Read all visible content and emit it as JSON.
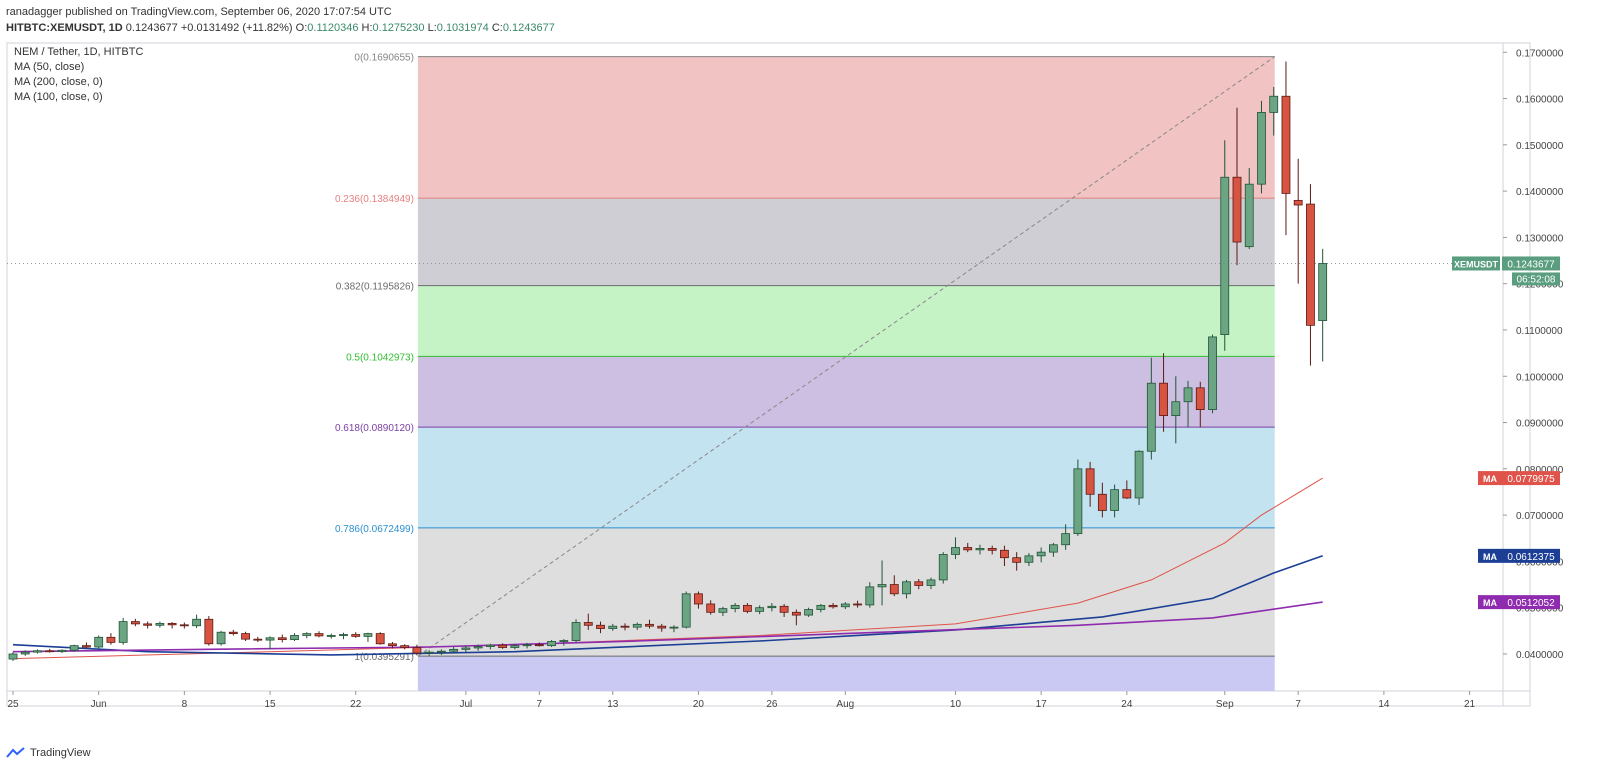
{
  "header": {
    "line1": "ranadagger published on TradingView.com, September 06, 2020 17:07:54 UTC",
    "symbol": "HITBTC:XEMUSDT, 1D",
    "last": "0.1243677",
    "change": "+0.0131492 (+11.82%)",
    "o_label": "O:",
    "o": "0.1120346",
    "h_label": "H:",
    "h": "0.1275230",
    "l_label": "L:",
    "l": "0.1031974",
    "c_label": "C:",
    "c": "0.1243677"
  },
  "legend": {
    "title": "NEM / Tether, 1D, HITBTC",
    "ma50": "MA (50, close)",
    "ma200": "MA (200, close, 0)",
    "ma100": "MA (100, close, 0)"
  },
  "footer": {
    "brand": "TradingView",
    "logo_icon": "tradingview-logo-icon"
  },
  "colors": {
    "up": "#6ba583",
    "down": "#d75442",
    "up_border": "#225437",
    "down_border": "#5b1a13",
    "ma50": "#e0534b",
    "ma100": "#8e2bae",
    "ma200": "#1c3f95",
    "fib_0_236": "#f0bcbc",
    "fib_236_382": "#c9c9cf",
    "fib_382_5": "#bff2c0",
    "fib_5_618": "#c8b8df",
    "fib_618_786": "#bde0f0",
    "fib_786_1": "#dadada",
    "fib_below": "#c3c3f2"
  },
  "chart_data": {
    "type": "candlestick",
    "title": "NEM / Tether, 1D, HITBTC",
    "x_tick_labels": [
      "25",
      "Jun",
      "8",
      "15",
      "22",
      "Jul",
      "7",
      "13",
      "20",
      "26",
      "Aug",
      "10",
      "17",
      "24",
      "Sep",
      "7",
      "14",
      "21"
    ],
    "x_tick_dates": [
      "2020-05-25",
      "2020-06-01",
      "2020-06-08",
      "2020-06-15",
      "2020-06-22",
      "2020-07-01",
      "2020-07-07",
      "2020-07-13",
      "2020-07-20",
      "2020-07-26",
      "2020-08-01",
      "2020-08-10",
      "2020-08-17",
      "2020-08-24",
      "2020-09-01",
      "2020-09-07",
      "2020-09-14",
      "2020-09-21"
    ],
    "x_range": [
      "2020-05-25",
      "2020-09-26"
    ],
    "y_range": [
      0.032,
      0.172
    ],
    "y_tick_labels": [
      "0.0400000",
      "0.0500000",
      "0.0600000",
      "0.0700000",
      "0.0800000",
      "0.0900000",
      "0.1000000",
      "0.1100000",
      "0.1200000",
      "0.1300000",
      "0.1400000",
      "0.1500000",
      "0.1600000",
      "0.1700000"
    ],
    "y_ticks": [
      0.04,
      0.05,
      0.06,
      0.07,
      0.08,
      0.09,
      0.1,
      0.11,
      0.12,
      0.13,
      0.14,
      0.15,
      0.16,
      0.17
    ],
    "last_price_label": "XEMUSDT",
    "last_price": "0.1243677",
    "last_price_value": 0.1243677,
    "countdown": "06:52:08",
    "candles": [
      {
        "date": "2020-05-25",
        "o": 0.0389,
        "h": 0.0404,
        "l": 0.0385,
        "c": 0.04
      },
      {
        "date": "2020-05-26",
        "o": 0.04,
        "h": 0.0408,
        "l": 0.0396,
        "c": 0.0404
      },
      {
        "date": "2020-05-27",
        "o": 0.0404,
        "h": 0.041,
        "l": 0.0401,
        "c": 0.0407
      },
      {
        "date": "2020-05-28",
        "o": 0.0407,
        "h": 0.0411,
        "l": 0.0403,
        "c": 0.0405
      },
      {
        "date": "2020-05-29",
        "o": 0.0405,
        "h": 0.041,
        "l": 0.0402,
        "c": 0.0408
      },
      {
        "date": "2020-05-30",
        "o": 0.0408,
        "h": 0.042,
        "l": 0.0405,
        "c": 0.0418
      },
      {
        "date": "2020-05-31",
        "o": 0.0418,
        "h": 0.0425,
        "l": 0.0412,
        "c": 0.0415
      },
      {
        "date": "2020-06-01",
        "o": 0.0415,
        "h": 0.044,
        "l": 0.0412,
        "c": 0.0436
      },
      {
        "date": "2020-06-02",
        "o": 0.0436,
        "h": 0.0445,
        "l": 0.042,
        "c": 0.0425
      },
      {
        "date": "2020-06-03",
        "o": 0.0425,
        "h": 0.0478,
        "l": 0.042,
        "c": 0.047
      },
      {
        "date": "2020-06-04",
        "o": 0.047,
        "h": 0.0476,
        "l": 0.046,
        "c": 0.0465
      },
      {
        "date": "2020-06-05",
        "o": 0.0465,
        "h": 0.047,
        "l": 0.0455,
        "c": 0.0462
      },
      {
        "date": "2020-06-06",
        "o": 0.0462,
        "h": 0.047,
        "l": 0.0457,
        "c": 0.0466
      },
      {
        "date": "2020-06-07",
        "o": 0.0466,
        "h": 0.0469,
        "l": 0.0455,
        "c": 0.0463
      },
      {
        "date": "2020-06-08",
        "o": 0.0463,
        "h": 0.0468,
        "l": 0.0455,
        "c": 0.0461
      },
      {
        "date": "2020-06-09",
        "o": 0.0461,
        "h": 0.0485,
        "l": 0.0456,
        "c": 0.0475
      },
      {
        "date": "2020-06-10",
        "o": 0.0475,
        "h": 0.0482,
        "l": 0.0418,
        "c": 0.0422
      },
      {
        "date": "2020-06-11",
        "o": 0.0422,
        "h": 0.045,
        "l": 0.0418,
        "c": 0.0447
      },
      {
        "date": "2020-06-12",
        "o": 0.0447,
        "h": 0.0452,
        "l": 0.044,
        "c": 0.0444
      },
      {
        "date": "2020-06-13",
        "o": 0.0444,
        "h": 0.0448,
        "l": 0.0428,
        "c": 0.0432
      },
      {
        "date": "2020-06-14",
        "o": 0.0432,
        "h": 0.0437,
        "l": 0.0426,
        "c": 0.043
      },
      {
        "date": "2020-06-15",
        "o": 0.043,
        "h": 0.0438,
        "l": 0.041,
        "c": 0.0435
      },
      {
        "date": "2020-06-16",
        "o": 0.0435,
        "h": 0.0442,
        "l": 0.0425,
        "c": 0.0431
      },
      {
        "date": "2020-06-17",
        "o": 0.0431,
        "h": 0.0445,
        "l": 0.0428,
        "c": 0.044
      },
      {
        "date": "2020-06-18",
        "o": 0.044,
        "h": 0.0447,
        "l": 0.0434,
        "c": 0.0444
      },
      {
        "date": "2020-06-19",
        "o": 0.0444,
        "h": 0.0449,
        "l": 0.0436,
        "c": 0.0439
      },
      {
        "date": "2020-06-20",
        "o": 0.0439,
        "h": 0.0444,
        "l": 0.0433,
        "c": 0.044
      },
      {
        "date": "2020-06-21",
        "o": 0.044,
        "h": 0.0446,
        "l": 0.0432,
        "c": 0.0442
      },
      {
        "date": "2020-06-22",
        "o": 0.0442,
        "h": 0.0447,
        "l": 0.0435,
        "c": 0.0438
      },
      {
        "date": "2020-06-23",
        "o": 0.0438,
        "h": 0.0446,
        "l": 0.0426,
        "c": 0.0444
      },
      {
        "date": "2020-06-24",
        "o": 0.0444,
        "h": 0.0447,
        "l": 0.042,
        "c": 0.0422
      },
      {
        "date": "2020-06-25",
        "o": 0.0422,
        "h": 0.0426,
        "l": 0.0412,
        "c": 0.0418
      },
      {
        "date": "2020-06-26",
        "o": 0.0418,
        "h": 0.0421,
        "l": 0.041,
        "c": 0.0414
      },
      {
        "date": "2020-06-27",
        "o": 0.0414,
        "h": 0.042,
        "l": 0.0397,
        "c": 0.0402
      },
      {
        "date": "2020-06-28",
        "o": 0.0402,
        "h": 0.0408,
        "l": 0.0396,
        "c": 0.0404
      },
      {
        "date": "2020-06-29",
        "o": 0.0404,
        "h": 0.041,
        "l": 0.0398,
        "c": 0.0406
      },
      {
        "date": "2020-06-30",
        "o": 0.0406,
        "h": 0.0415,
        "l": 0.0402,
        "c": 0.041
      },
      {
        "date": "2020-07-01",
        "o": 0.041,
        "h": 0.0418,
        "l": 0.0404,
        "c": 0.0413
      },
      {
        "date": "2020-07-02",
        "o": 0.0413,
        "h": 0.042,
        "l": 0.0407,
        "c": 0.0416
      },
      {
        "date": "2020-07-03",
        "o": 0.0416,
        "h": 0.0422,
        "l": 0.041,
        "c": 0.0419
      },
      {
        "date": "2020-07-04",
        "o": 0.0419,
        "h": 0.0423,
        "l": 0.0411,
        "c": 0.0414
      },
      {
        "date": "2020-07-05",
        "o": 0.0414,
        "h": 0.0422,
        "l": 0.041,
        "c": 0.0418
      },
      {
        "date": "2020-07-06",
        "o": 0.0418,
        "h": 0.0424,
        "l": 0.0412,
        "c": 0.042
      },
      {
        "date": "2020-07-07",
        "o": 0.042,
        "h": 0.0425,
        "l": 0.0416,
        "c": 0.0418
      },
      {
        "date": "2020-07-08",
        "o": 0.0418,
        "h": 0.043,
        "l": 0.0415,
        "c": 0.0427
      },
      {
        "date": "2020-07-09",
        "o": 0.0427,
        "h": 0.0432,
        "l": 0.0418,
        "c": 0.0429
      },
      {
        "date": "2020-07-10",
        "o": 0.0429,
        "h": 0.0475,
        "l": 0.0425,
        "c": 0.0468
      },
      {
        "date": "2020-07-11",
        "o": 0.0468,
        "h": 0.0487,
        "l": 0.0452,
        "c": 0.0462
      },
      {
        "date": "2020-07-12",
        "o": 0.0462,
        "h": 0.047,
        "l": 0.0445,
        "c": 0.0455
      },
      {
        "date": "2020-07-13",
        "o": 0.0455,
        "h": 0.0465,
        "l": 0.045,
        "c": 0.046
      },
      {
        "date": "2020-07-14",
        "o": 0.046,
        "h": 0.0466,
        "l": 0.0451,
        "c": 0.0458
      },
      {
        "date": "2020-07-15",
        "o": 0.0458,
        "h": 0.0468,
        "l": 0.0452,
        "c": 0.0464
      },
      {
        "date": "2020-07-16",
        "o": 0.0464,
        "h": 0.0474,
        "l": 0.0455,
        "c": 0.046
      },
      {
        "date": "2020-07-17",
        "o": 0.046,
        "h": 0.0465,
        "l": 0.0448,
        "c": 0.0456
      },
      {
        "date": "2020-07-18",
        "o": 0.0456,
        "h": 0.0462,
        "l": 0.0447,
        "c": 0.0458
      },
      {
        "date": "2020-07-19",
        "o": 0.0458,
        "h": 0.0535,
        "l": 0.0455,
        "c": 0.053
      },
      {
        "date": "2020-07-20",
        "o": 0.053,
        "h": 0.0535,
        "l": 0.0498,
        "c": 0.0508
      },
      {
        "date": "2020-07-21",
        "o": 0.0508,
        "h": 0.0516,
        "l": 0.0485,
        "c": 0.049
      },
      {
        "date": "2020-07-22",
        "o": 0.049,
        "h": 0.0502,
        "l": 0.0482,
        "c": 0.0498
      },
      {
        "date": "2020-07-23",
        "o": 0.0498,
        "h": 0.051,
        "l": 0.049,
        "c": 0.0505
      },
      {
        "date": "2020-07-24",
        "o": 0.0505,
        "h": 0.051,
        "l": 0.0488,
        "c": 0.0492
      },
      {
        "date": "2020-07-25",
        "o": 0.0492,
        "h": 0.0505,
        "l": 0.0486,
        "c": 0.05
      },
      {
        "date": "2020-07-26",
        "o": 0.05,
        "h": 0.051,
        "l": 0.0492,
        "c": 0.0503
      },
      {
        "date": "2020-07-27",
        "o": 0.0503,
        "h": 0.0508,
        "l": 0.048,
        "c": 0.049
      },
      {
        "date": "2020-07-28",
        "o": 0.049,
        "h": 0.0496,
        "l": 0.0462,
        "c": 0.0484
      },
      {
        "date": "2020-07-29",
        "o": 0.0484,
        "h": 0.05,
        "l": 0.048,
        "c": 0.0496
      },
      {
        "date": "2020-07-30",
        "o": 0.0496,
        "h": 0.0508,
        "l": 0.049,
        "c": 0.0505
      },
      {
        "date": "2020-07-31",
        "o": 0.0505,
        "h": 0.051,
        "l": 0.0498,
        "c": 0.0502
      },
      {
        "date": "2020-08-01",
        "o": 0.0502,
        "h": 0.0512,
        "l": 0.0497,
        "c": 0.0508
      },
      {
        "date": "2020-08-02",
        "o": 0.0508,
        "h": 0.0515,
        "l": 0.05,
        "c": 0.0506
      },
      {
        "date": "2020-08-03",
        "o": 0.0506,
        "h": 0.0555,
        "l": 0.05,
        "c": 0.0545
      },
      {
        "date": "2020-08-04",
        "o": 0.0545,
        "h": 0.0602,
        "l": 0.0505,
        "c": 0.055
      },
      {
        "date": "2020-08-05",
        "o": 0.055,
        "h": 0.057,
        "l": 0.0525,
        "c": 0.053
      },
      {
        "date": "2020-08-06",
        "o": 0.053,
        "h": 0.056,
        "l": 0.052,
        "c": 0.0556
      },
      {
        "date": "2020-08-07",
        "o": 0.0556,
        "h": 0.0562,
        "l": 0.054,
        "c": 0.0548
      },
      {
        "date": "2020-08-08",
        "o": 0.0548,
        "h": 0.0565,
        "l": 0.054,
        "c": 0.056
      },
      {
        "date": "2020-08-09",
        "o": 0.056,
        "h": 0.062,
        "l": 0.0552,
        "c": 0.0615
      },
      {
        "date": "2020-08-10",
        "o": 0.0615,
        "h": 0.0652,
        "l": 0.0605,
        "c": 0.063
      },
      {
        "date": "2020-08-11",
        "o": 0.063,
        "h": 0.064,
        "l": 0.062,
        "c": 0.0625
      },
      {
        "date": "2020-08-12",
        "o": 0.0625,
        "h": 0.0636,
        "l": 0.0615,
        "c": 0.0628
      },
      {
        "date": "2020-08-13",
        "o": 0.0628,
        "h": 0.0634,
        "l": 0.0615,
        "c": 0.0624
      },
      {
        "date": "2020-08-14",
        "o": 0.0624,
        "h": 0.0634,
        "l": 0.059,
        "c": 0.0608
      },
      {
        "date": "2020-08-15",
        "o": 0.0608,
        "h": 0.062,
        "l": 0.058,
        "c": 0.0598
      },
      {
        "date": "2020-08-16",
        "o": 0.0598,
        "h": 0.0618,
        "l": 0.059,
        "c": 0.0612
      },
      {
        "date": "2020-08-17",
        "o": 0.0612,
        "h": 0.063,
        "l": 0.0598,
        "c": 0.062
      },
      {
        "date": "2020-08-18",
        "o": 0.062,
        "h": 0.064,
        "l": 0.061,
        "c": 0.0636
      },
      {
        "date": "2020-08-19",
        "o": 0.0636,
        "h": 0.068,
        "l": 0.0625,
        "c": 0.066
      },
      {
        "date": "2020-08-20",
        "o": 0.066,
        "h": 0.082,
        "l": 0.0655,
        "c": 0.08
      },
      {
        "date": "2020-08-21",
        "o": 0.08,
        "h": 0.0815,
        "l": 0.0718,
        "c": 0.0745
      },
      {
        "date": "2020-08-22",
        "o": 0.0745,
        "h": 0.077,
        "l": 0.0695,
        "c": 0.071
      },
      {
        "date": "2020-08-23",
        "o": 0.071,
        "h": 0.0766,
        "l": 0.0695,
        "c": 0.0755
      },
      {
        "date": "2020-08-24",
        "o": 0.0755,
        "h": 0.0775,
        "l": 0.0735,
        "c": 0.0737
      },
      {
        "date": "2020-08-25",
        "o": 0.0737,
        "h": 0.084,
        "l": 0.0722,
        "c": 0.0838
      },
      {
        "date": "2020-08-26",
        "o": 0.0838,
        "h": 0.104,
        "l": 0.082,
        "c": 0.0985
      },
      {
        "date": "2020-08-27",
        "o": 0.0985,
        "h": 0.105,
        "l": 0.088,
        "c": 0.0915
      },
      {
        "date": "2020-08-28",
        "o": 0.0915,
        "h": 0.1,
        "l": 0.0855,
        "c": 0.0945
      },
      {
        "date": "2020-08-29",
        "o": 0.0945,
        "h": 0.099,
        "l": 0.089,
        "c": 0.0975
      },
      {
        "date": "2020-08-30",
        "o": 0.0975,
        "h": 0.0988,
        "l": 0.089,
        "c": 0.0928
      },
      {
        "date": "2020-08-31",
        "o": 0.0928,
        "h": 0.109,
        "l": 0.092,
        "c": 0.1085
      },
      {
        "date": "2020-09-01",
        "o": 0.109,
        "h": 0.151,
        "l": 0.1055,
        "c": 0.143
      },
      {
        "date": "2020-09-02",
        "o": 0.143,
        "h": 0.158,
        "l": 0.124,
        "c": 0.129
      },
      {
        "date": "2020-09-03",
        "o": 0.128,
        "h": 0.145,
        "l": 0.1275,
        "c": 0.1415
      },
      {
        "date": "2020-09-04",
        "o": 0.1415,
        "h": 0.1595,
        "l": 0.1395,
        "c": 0.157
      },
      {
        "date": "2020-09-05",
        "o": 0.157,
        "h": 0.1625,
        "l": 0.152,
        "c": 0.1605
      },
      {
        "date": "2020-09-06",
        "o": 0.1605,
        "h": 0.168,
        "l": 0.1305,
        "c": 0.1395
      },
      {
        "date": "2020-09-07",
        "o": 0.138,
        "h": 0.147,
        "l": 0.12,
        "c": 0.137
      },
      {
        "date": "2020-09-08",
        "o": 0.1372,
        "h": 0.1415,
        "l": 0.1023,
        "c": 0.111
      },
      {
        "date": "2020-09-09",
        "o": 0.1120346,
        "h": 0.127523,
        "l": 0.1031974,
        "c": 0.1243677
      }
    ],
    "moving_averages": [
      {
        "name": "MA (50, close)",
        "badge": "MA",
        "value_label": "0.0779975",
        "color": "#e0534b",
        "points": [
          [
            "2020-05-25",
            0.039
          ],
          [
            "2020-06-15",
            0.0405
          ],
          [
            "2020-07-05",
            0.042
          ],
          [
            "2020-07-25",
            0.044
          ],
          [
            "2020-08-10",
            0.0465
          ],
          [
            "2020-08-20",
            0.051
          ],
          [
            "2020-08-26",
            0.056
          ],
          [
            "2020-09-01",
            0.064
          ],
          [
            "2020-09-04",
            0.07
          ],
          [
            "2020-09-09",
            0.078
          ]
        ]
      },
      {
        "name": "MA (200, close, 0)",
        "badge": "MA",
        "value_label": "0.0612375",
        "color": "#1c3f95",
        "points": [
          [
            "2020-05-25",
            0.042
          ],
          [
            "2020-06-05",
            0.0405
          ],
          [
            "2020-06-20",
            0.0398
          ],
          [
            "2020-07-05",
            0.0405
          ],
          [
            "2020-07-25",
            0.0428
          ],
          [
            "2020-08-10",
            0.0452
          ],
          [
            "2020-08-22",
            0.048
          ],
          [
            "2020-08-31",
            0.052
          ],
          [
            "2020-09-05",
            0.0575
          ],
          [
            "2020-09-09",
            0.0612
          ]
        ]
      },
      {
        "name": "MA (100, close, 0)",
        "badge": "MA",
        "value_label": "0.0512052",
        "color": "#8e2bae",
        "points": [
          [
            "2020-05-25",
            0.0405
          ],
          [
            "2020-06-10",
            0.041
          ],
          [
            "2020-06-28",
            0.0415
          ],
          [
            "2020-07-15",
            0.0428
          ],
          [
            "2020-08-05",
            0.0448
          ],
          [
            "2020-08-20",
            0.0462
          ],
          [
            "2020-08-31",
            0.0478
          ],
          [
            "2020-09-09",
            0.0512
          ]
        ]
      }
    ],
    "fibonacci": {
      "start_date": "2020-06-27",
      "end_date": "2020-09-05",
      "levels": [
        {
          "label": "0(0.1690655)",
          "value": 0.1690655,
          "color": "#858585"
        },
        {
          "label": "0.236(0.1384949)",
          "value": 0.1384949,
          "color": "#e58080"
        },
        {
          "label": "0.382(0.1195826)",
          "value": 0.1195826,
          "color": "#6b6b6b"
        },
        {
          "label": "0.5(0.1042973)",
          "value": 0.1042973,
          "color": "#2fbf2f"
        },
        {
          "label": "0.618(0.0890120)",
          "value": 0.089012,
          "color": "#7b3fa6"
        },
        {
          "label": "0.786(0.0672499)",
          "value": 0.0672499,
          "color": "#2c8fcf"
        },
        {
          "label": "1(0.0395291)",
          "value": 0.0395291,
          "color": "#6b6b6b"
        }
      ]
    }
  }
}
